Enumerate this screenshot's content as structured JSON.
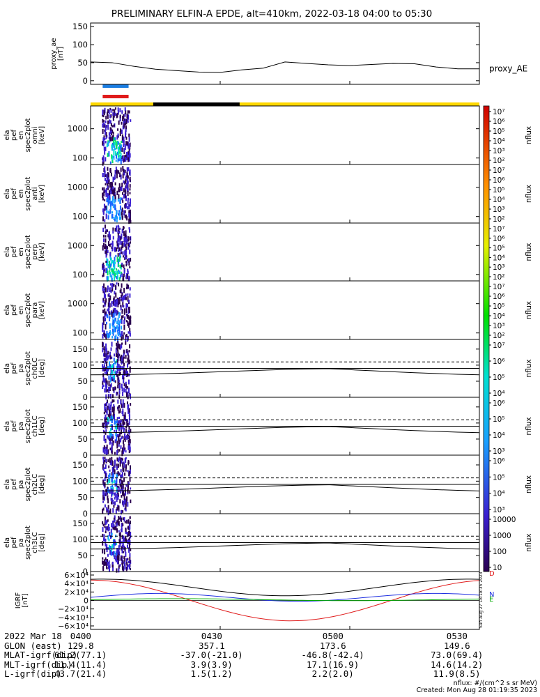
{
  "title": "PRELIMINARY ELFIN-A EPDE, alt=410km, 2022-03-18 04:00 to 05:30",
  "colors": {
    "blue_bar": "#1a7ce0",
    "red_bar": "#e01b1b",
    "sunlit": "#ffd700",
    "eclipse": "#000000",
    "bx": "#e01b1b",
    "by": "#1e2fe0",
    "bz": "#00aa00",
    "bmag": "#000000"
  },
  "chart_data": [
    {
      "type": "line",
      "name": "proxy_ae",
      "ylabel": "proxy_ae\n[nT]",
      "series_label": "proxy_AE",
      "ylim": [
        -10,
        160
      ],
      "yticks": [
        0,
        50,
        100,
        150
      ],
      "x_minutes": [
        0,
        5,
        10,
        15,
        20,
        25,
        30,
        35,
        40,
        45,
        50,
        55,
        60,
        65,
        70,
        75,
        80,
        85,
        90
      ],
      "values": [
        52,
        50,
        40,
        32,
        28,
        24,
        23,
        30,
        35,
        52,
        48,
        44,
        42,
        45,
        48,
        47,
        38,
        33,
        33
      ]
    },
    {
      "type": "heatmap",
      "name": "omni",
      "ylabel": "ela\npef\nen\nspec2plot\nomni\n[keV]",
      "yscale": "log",
      "ylim": [
        60,
        6000
      ],
      "yticks": [
        100,
        1000
      ],
      "cbar": {
        "label": "nflux",
        "ticks": [
          "10⁷",
          "10⁶",
          "10⁵",
          "10⁴",
          "10³",
          "10²"
        ]
      }
    },
    {
      "type": "heatmap",
      "name": "anti",
      "ylabel": "ela\npef\nen\nspec2plot\nanti\n[keV]",
      "yscale": "log",
      "ylim": [
        60,
        6000
      ],
      "yticks": [
        100,
        1000
      ],
      "cbar": {
        "label": "nflux",
        "ticks": [
          "10⁷",
          "10⁶",
          "10⁵",
          "10⁴",
          "10³",
          "10²"
        ]
      }
    },
    {
      "type": "heatmap",
      "name": "perp",
      "ylabel": "ela\npef\nen\nspec2plot\nperp\n[keV]",
      "yscale": "log",
      "ylim": [
        60,
        6000
      ],
      "yticks": [
        100,
        1000
      ],
      "cbar": {
        "label": "nflux",
        "ticks": [
          "10⁷",
          "10⁶",
          "10⁵",
          "10⁴",
          "10³",
          "10²"
        ]
      }
    },
    {
      "type": "heatmap",
      "name": "para",
      "ylabel": "ela\npef\nen\nspec2plot\npara\n[keV]",
      "yscale": "log",
      "ylim": [
        60,
        6000
      ],
      "yticks": [
        100,
        1000
      ],
      "cbar": {
        "label": "nflux",
        "ticks": [
          "10⁷",
          "10⁶",
          "10⁵",
          "10⁴",
          "10³",
          "10²"
        ]
      }
    },
    {
      "type": "heatmap",
      "name": "ch0LC",
      "ylabel": "ela\npef\npa\nspec2plot\nch0LC\n[deg]",
      "ylim": [
        0,
        180
      ],
      "yticks": [
        0,
        50,
        100,
        150
      ],
      "cbar": {
        "label": "nflux",
        "ticks": [
          "10⁷",
          "10⁶",
          "10⁵",
          "10⁴"
        ]
      }
    },
    {
      "type": "heatmap",
      "name": "ch1LC",
      "ylabel": "ela\npef\npa\nspec2plot\nch1LC\n[deg]",
      "ylim": [
        0,
        180
      ],
      "yticks": [
        0,
        50,
        100,
        150
      ],
      "cbar": {
        "label": "nflux",
        "ticks": [
          "10⁶",
          "10⁵",
          "10⁴",
          "10³"
        ]
      }
    },
    {
      "type": "heatmap",
      "name": "ch2LC",
      "ylabel": "ela\npef\npa\nspec2plot\nch2LC\n[deg]",
      "ylim": [
        0,
        180
      ],
      "yticks": [
        0,
        50,
        100,
        150
      ],
      "cbar": {
        "label": "nflux",
        "ticks": [
          "10⁶",
          "10⁵",
          "10⁴",
          "10³"
        ]
      }
    },
    {
      "type": "heatmap",
      "name": "ch3LC",
      "ylabel": "ela\npef\npa\nspec2plot\nch3LC\n[deg]",
      "ylim": [
        0,
        180
      ],
      "yticks": [
        0,
        50,
        100,
        150
      ],
      "cbar": {
        "label": "nflux",
        "ticks": [
          "10000",
          "1000",
          "100",
          "10"
        ]
      }
    },
    {
      "type": "line",
      "name": "IGRF",
      "ylabel": "IGRF\n[nT]",
      "ylim": [
        -65000,
        65000
      ],
      "yticks": [
        "6×10⁴",
        "4×10⁴",
        "2×10⁴",
        "0",
        "−2×10⁴",
        "−4×10⁴",
        "−6×10⁴"
      ],
      "legend": [
        "D",
        "N",
        "E"
      ],
      "side_stamp": "Sun Aug 27 18:18:35 2023",
      "x_minutes": [
        0,
        10,
        20,
        30,
        40,
        50,
        60,
        70,
        80,
        90
      ]
    }
  ],
  "pa_loss_cone_deg": 70,
  "pa_anti_loss_cone_deg": 110,
  "footer": {
    "rows": [
      {
        "label": "2022 Mar 18",
        "vals": [
          "0400",
          "0430",
          "0500",
          "0530"
        ]
      },
      {
        "label": "GLON (east)",
        "vals": [
          "129.8",
          "357.1",
          "173.6",
          "149.6"
        ]
      },
      {
        "label": "MLAT-igrf(dip)",
        "vals": [
          "61.2(77.1)",
          "-37.0(-21.0)",
          "-46.8(-42.4)",
          "73.0(69.4)"
        ]
      },
      {
        "label": "MLT-igrf(dip)",
        "vals": [
          "11.4(11.4)",
          "3.9(3.9)",
          "17.1(16.9)",
          "14.6(14.2)"
        ]
      },
      {
        "label": "L-igrf(dip)",
        "vals": [
          "43.7(21.4)",
          "1.5(1.2)",
          "2.2(2.0)",
          "11.9(8.5)"
        ]
      }
    ],
    "units_note": "nflux: #/(cm^2 s sr MeV)",
    "created": "Created: Mon Aug 28 01:19:35 2023"
  }
}
